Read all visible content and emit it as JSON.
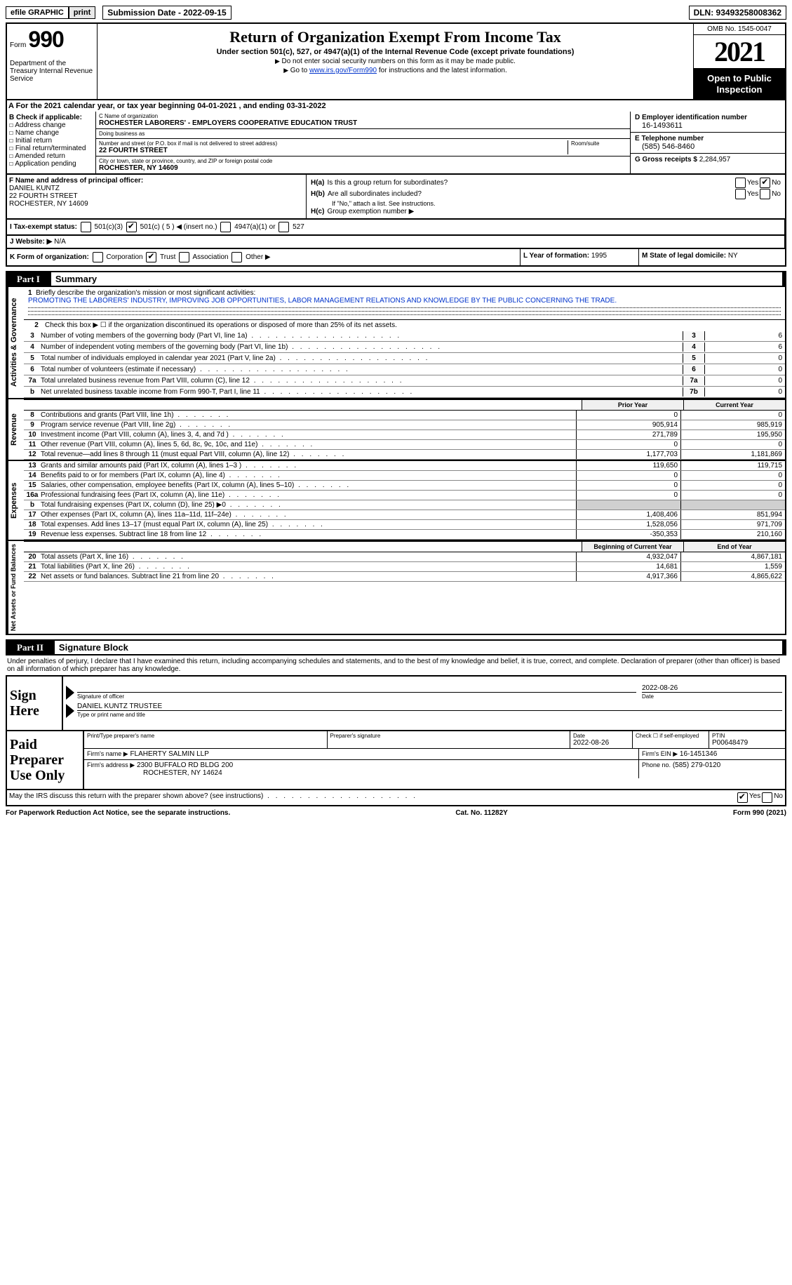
{
  "topbar": {
    "efile": "efile GRAPHIC",
    "print": "print",
    "submission": "Submission Date - 2022-09-15",
    "dln": "DLN: 93493258008362"
  },
  "header": {
    "form_label": "Form",
    "form_num": "990",
    "dept": "Department of the Treasury Internal Revenue Service",
    "title": "Return of Organization Exempt From Income Tax",
    "subtitle": "Under section 501(c), 527, or 4947(a)(1) of the Internal Revenue Code (except private foundations)",
    "note1": "Do not enter social security numbers on this form as it may be made public.",
    "note2_pre": "Go to ",
    "note2_link": "www.irs.gov/Form990",
    "note2_post": " for instructions and the latest information.",
    "omb": "OMB No. 1545-0047",
    "year": "2021",
    "open": "Open to Public Inspection"
  },
  "lineA": "A  For the 2021 calendar year, or tax year beginning 04-01-2021   , and ending 03-31-2022",
  "B": {
    "header": "B Check if applicable:",
    "addr": "Address change",
    "name": "Name change",
    "initial": "Initial return",
    "final": "Final return/terminated",
    "amended": "Amended return",
    "app": "Application pending"
  },
  "C": {
    "name_lab": "C Name of organization",
    "name": "ROCHESTER LABORERS' - EMPLOYERS COOPERATIVE EDUCATION TRUST",
    "dba_lab": "Doing business as",
    "street_lab": "Number and street (or P.O. box if mail is not delivered to street address)",
    "room_lab": "Room/suite",
    "street": "22 FOURTH STREET",
    "city_lab": "City or town, state or province, country, and ZIP or foreign postal code",
    "city": "ROCHESTER, NY  14609"
  },
  "D": {
    "ein_lab": "D Employer identification number",
    "ein": "16-1493611",
    "phone_lab": "E Telephone number",
    "phone": "(585) 546-8460",
    "gross_lab": "G Gross receipts $",
    "gross": "2,284,957"
  },
  "F": {
    "lab": "F Name and address of principal officer:",
    "name": "DANIEL KUNTZ",
    "street": "22 FOURTH STREET",
    "city": "ROCHESTER, NY  14609"
  },
  "H": {
    "a_lab": "H(a)",
    "a_text": "Is this a group return for subordinates?",
    "b_lab": "H(b)",
    "b_text": "Are all subordinates included?",
    "b_note": "If \"No,\" attach a list. See instructions.",
    "c_lab": "H(c)",
    "c_text": "Group exemption number ▶",
    "yes": "Yes",
    "no": "No"
  },
  "I": {
    "lab": "I  Tax-exempt status:",
    "c3": "501(c)(3)",
    "c": "501(c) ( 5 ) ◀ (insert no.)",
    "a1": "4947(a)(1) or",
    "s527": "527"
  },
  "J": {
    "lab": "J  Website: ▶",
    "val": "N/A"
  },
  "K": {
    "lab": "K Form of organization:",
    "corp": "Corporation",
    "trust": "Trust",
    "assoc": "Association",
    "other": "Other ▶"
  },
  "L": {
    "lab": "L Year of formation:",
    "val": "1995"
  },
  "M": {
    "lab": "M State of legal domicile:",
    "val": "NY"
  },
  "parts": {
    "p1": "Part I",
    "p1_title": "Summary",
    "p2": "Part II",
    "p2_title": "Signature Block"
  },
  "summary": {
    "line1_lab": "Briefly describe the organization's mission or most significant activities:",
    "mission": "PROMOTING THE LABORERS' INDUSTRY, IMPROVING JOB OPPORTUNITIES, LABOR MANAGEMENT RELATIONS AND KNOWLEDGE BY THE PUBLIC CONCERNING THE TRADE.",
    "line2": "Check this box ▶ ☐  if the organization discontinued its operations or disposed of more than 25% of its net assets.",
    "lines": [
      {
        "n": "3",
        "t": "Number of voting members of the governing body (Part VI, line 1a)",
        "box": "3",
        "v": "6"
      },
      {
        "n": "4",
        "t": "Number of independent voting members of the governing body (Part VI, line 1b)",
        "box": "4",
        "v": "6"
      },
      {
        "n": "5",
        "t": "Total number of individuals employed in calendar year 2021 (Part V, line 2a)",
        "box": "5",
        "v": "0"
      },
      {
        "n": "6",
        "t": "Total number of volunteers (estimate if necessary)",
        "box": "6",
        "v": "0"
      },
      {
        "n": "7a",
        "t": "Total unrelated business revenue from Part VIII, column (C), line 12",
        "box": "7a",
        "v": "0"
      },
      {
        "n": "b",
        "t": "Net unrelated business taxable income from Form 990-T, Part I, line 11",
        "box": "7b",
        "v": "0"
      }
    ],
    "col_prior": "Prior Year",
    "col_curr": "Current Year",
    "col_beg": "Beginning of Current Year",
    "col_end": "End of Year",
    "vert": {
      "ag": "Activities & Governance",
      "rev": "Revenue",
      "exp": "Expenses",
      "net": "Net Assets or Fund Balances"
    },
    "rev": [
      {
        "n": "8",
        "t": "Contributions and grants (Part VIII, line 1h)",
        "p": "0",
        "c": "0"
      },
      {
        "n": "9",
        "t": "Program service revenue (Part VIII, line 2g)",
        "p": "905,914",
        "c": "985,919"
      },
      {
        "n": "10",
        "t": "Investment income (Part VIII, column (A), lines 3, 4, and 7d )",
        "p": "271,789",
        "c": "195,950"
      },
      {
        "n": "11",
        "t": "Other revenue (Part VIII, column (A), lines 5, 6d, 8c, 9c, 10c, and 11e)",
        "p": "0",
        "c": "0"
      },
      {
        "n": "12",
        "t": "Total revenue—add lines 8 through 11 (must equal Part VIII, column (A), line 12)",
        "p": "1,177,703",
        "c": "1,181,869"
      }
    ],
    "exp": [
      {
        "n": "13",
        "t": "Grants and similar amounts paid (Part IX, column (A), lines 1–3 )",
        "p": "119,650",
        "c": "119,715"
      },
      {
        "n": "14",
        "t": "Benefits paid to or for members (Part IX, column (A), line 4)",
        "p": "0",
        "c": "0"
      },
      {
        "n": "15",
        "t": "Salaries, other compensation, employee benefits (Part IX, column (A), lines 5–10)",
        "p": "0",
        "c": "0"
      },
      {
        "n": "16a",
        "t": "Professional fundraising fees (Part IX, column (A), line 11e)",
        "p": "0",
        "c": "0"
      },
      {
        "n": "b",
        "t": "Total fundraising expenses (Part IX, column (D), line 25) ▶0",
        "p": "shade",
        "c": "shade"
      },
      {
        "n": "17",
        "t": "Other expenses (Part IX, column (A), lines 11a–11d, 11f–24e)",
        "p": "1,408,406",
        "c": "851,994"
      },
      {
        "n": "18",
        "t": "Total expenses. Add lines 13–17 (must equal Part IX, column (A), line 25)",
        "p": "1,528,056",
        "c": "971,709"
      },
      {
        "n": "19",
        "t": "Revenue less expenses. Subtract line 18 from line 12",
        "p": "-350,353",
        "c": "210,160"
      }
    ],
    "net": [
      {
        "n": "20",
        "t": "Total assets (Part X, line 16)",
        "p": "4,932,047",
        "c": "4,867,181"
      },
      {
        "n": "21",
        "t": "Total liabilities (Part X, line 26)",
        "p": "14,681",
        "c": "1,559"
      },
      {
        "n": "22",
        "t": "Net assets or fund balances. Subtract line 21 from line 20",
        "p": "4,917,366",
        "c": "4,865,622"
      }
    ]
  },
  "penalties": "Under penalties of perjury, I declare that I have examined this return, including accompanying schedules and statements, and to the best of my knowledge and belief, it is true, correct, and complete. Declaration of preparer (other than officer) is based on all information of which preparer has any knowledge.",
  "sign": {
    "label": "Sign Here",
    "sig_cap": "Signature of officer",
    "date": "2022-08-26",
    "date_cap": "Date",
    "name": "DANIEL KUNTZ  TRUSTEE",
    "name_cap": "Type or print name and title"
  },
  "prep": {
    "label": "Paid Preparer Use Only",
    "name_lab": "Print/Type preparer's name",
    "sig_lab": "Preparer's signature",
    "date_lab": "Date",
    "date": "2022-08-26",
    "check_lab": "Check ☐ if self-employed",
    "ptin_lab": "PTIN",
    "ptin": "P00648479",
    "firm_lab": "Firm's name    ▶",
    "firm": "FLAHERTY SALMIN LLP",
    "ein_lab": "Firm's EIN ▶",
    "ein": "16-1451346",
    "addr_lab": "Firm's address ▶",
    "addr": "2300 BUFFALO RD BLDG 200",
    "addr2": "ROCHESTER, NY  14624",
    "phone_lab": "Phone no.",
    "phone": "(585) 279-0120"
  },
  "discuss": "May the IRS discuss this return with the preparer shown above? (see instructions)",
  "footer": {
    "left": "For Paperwork Reduction Act Notice, see the separate instructions.",
    "mid": "Cat. No. 11282Y",
    "right": "Form 990 (2021)"
  }
}
